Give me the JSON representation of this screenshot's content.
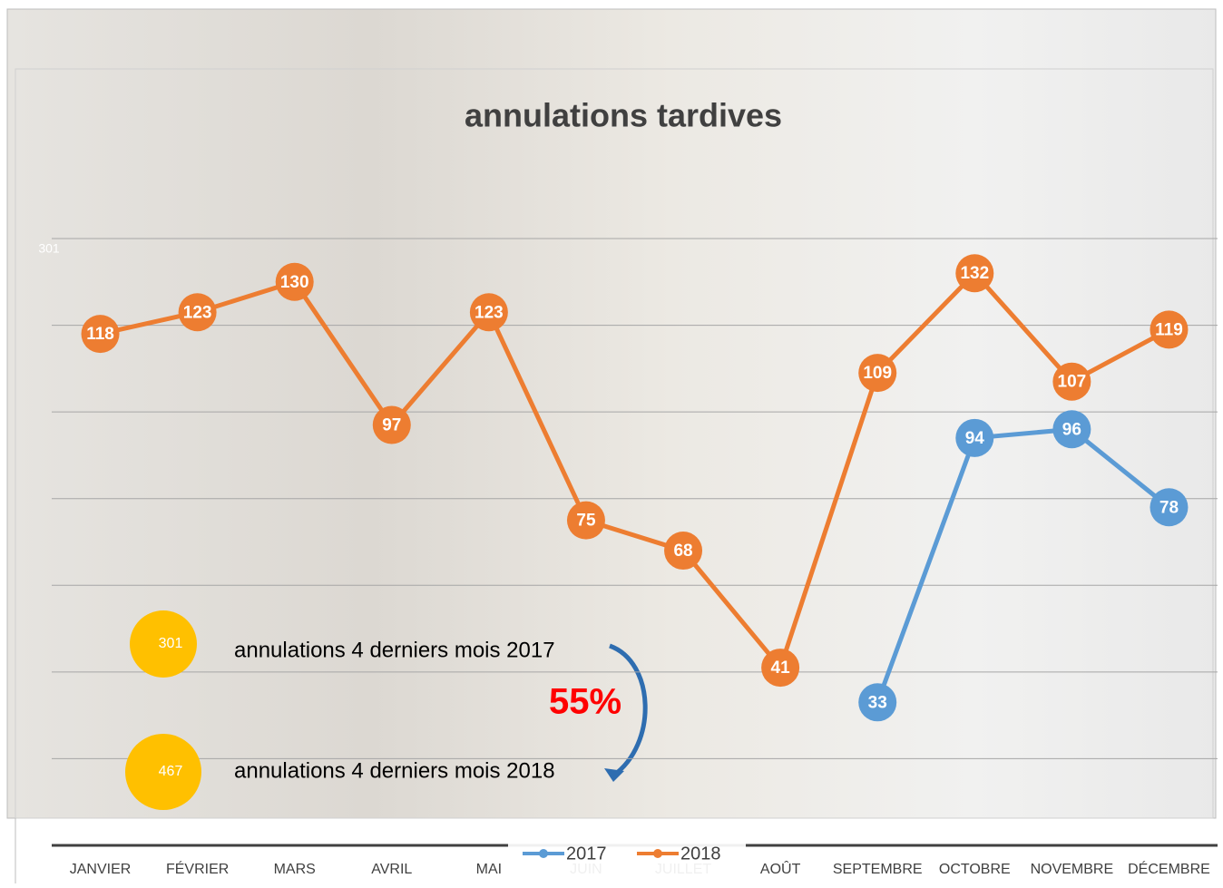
{
  "chart_data": {
    "type": "line",
    "title": "annulations tardives",
    "categories": [
      "JANVIER",
      "FÉVRIER",
      "MARS",
      "AVRIL",
      "MAI",
      "JUIN",
      "JUILLET",
      "AOÛT",
      "SEPTEMBRE",
      "OCTOBRE",
      "NOVEMBRE",
      "DÉCEMBRE"
    ],
    "series": [
      {
        "name": "2017",
        "color": "#5b9bd5",
        "values": [
          null,
          null,
          null,
          null,
          null,
          null,
          null,
          null,
          33,
          94,
          96,
          78
        ]
      },
      {
        "name": "2018",
        "color": "#ed7d31",
        "values": [
          118,
          123,
          130,
          97,
          123,
          75,
          68,
          41,
          109,
          132,
          107,
          119
        ]
      }
    ],
    "ylim": [
      0,
      140
    ],
    "yticks": [
      0,
      20,
      40,
      60,
      80,
      100,
      120,
      140
    ],
    "grid": true,
    "legend": "bottom",
    "annotations": [
      "301",
      "301",
      "467",
      "annulations 4 derniers mois 2017",
      "annulations 4 derniers mois 2018",
      "55%"
    ]
  }
}
